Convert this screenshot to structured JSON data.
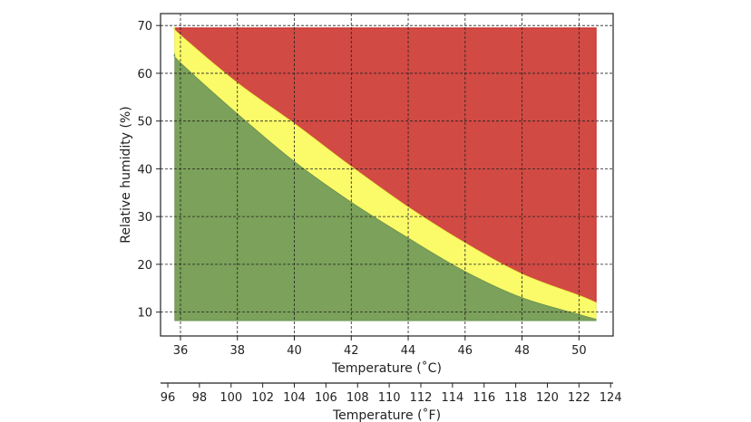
{
  "colors": {
    "danger": "#d24a44",
    "caution": "#fbfb6a",
    "safe": "#7ba15a",
    "danger_edge": "#c8201a",
    "caution_edge": "#e8e840"
  },
  "chart_data": {
    "type": "area",
    "xlabel": "Temperature ($^\\circ$C)",
    "xlabel_display": "Temperature (˚C)",
    "ylabel": "Relative humidity (%)",
    "xlim": [
      35.3,
      51.2
    ],
    "ylim": [
      5,
      72.5
    ],
    "xticks": [
      36,
      38,
      40,
      42,
      44,
      46,
      48,
      50
    ],
    "yticks": [
      10,
      20,
      30,
      40,
      50,
      60,
      70
    ],
    "grid": true,
    "secondary_xaxis": {
      "label": "Temperature (˚F)",
      "ticks": [
        96,
        98,
        100,
        102,
        104,
        106,
        108,
        110,
        112,
        114,
        116,
        118,
        120,
        122,
        124
      ]
    },
    "x": [
      35.8,
      36,
      38,
      40,
      42,
      44,
      46,
      48,
      50,
      50.6
    ],
    "series": [
      {
        "key": "safe",
        "bottom": 8.2,
        "upper": [
          64,
          62.2,
          51.5,
          41.5,
          33,
          25.5,
          18.5,
          13,
          9.5,
          8.5
        ]
      },
      {
        "key": "caution",
        "upper": [
          69.5,
          68,
          58,
          49.5,
          40.5,
          32,
          24.5,
          18,
          13.5,
          12
        ]
      },
      {
        "key": "danger",
        "top": 69.5
      }
    ]
  }
}
